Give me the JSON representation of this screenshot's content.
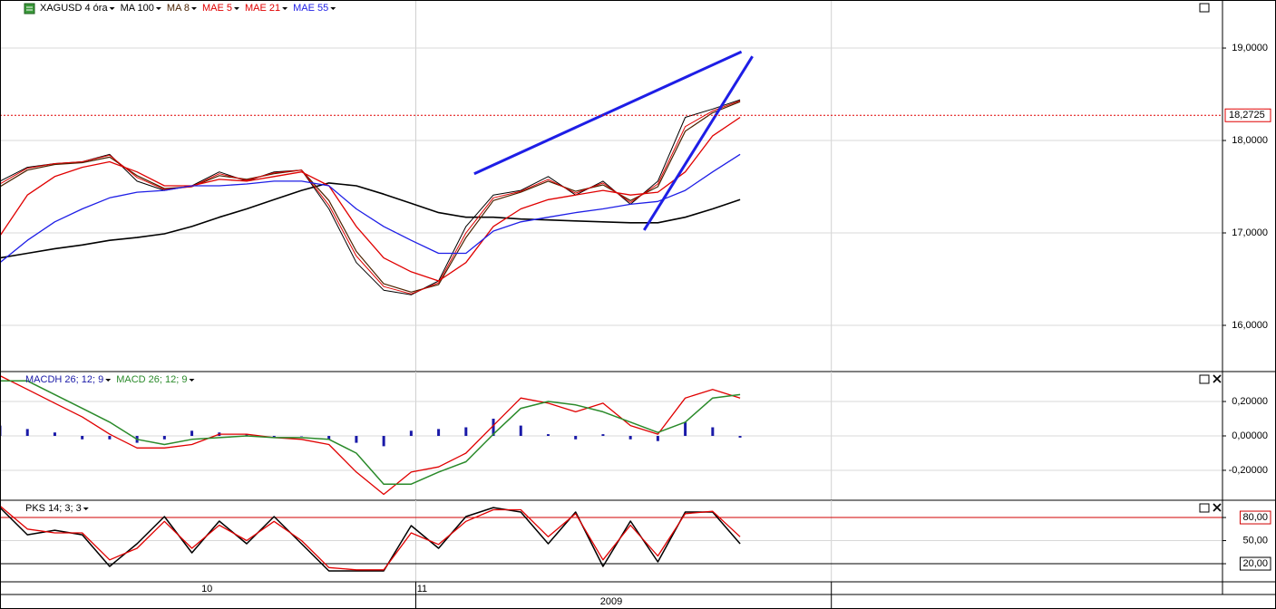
{
  "chart_data": [
    {
      "type": "line",
      "ylim": [
        15.5,
        19.52
      ],
      "yticks": [
        {
          "value": 16,
          "label": "16,0000"
        },
        {
          "value": 17,
          "label": "17,0000"
        },
        {
          "value": 18,
          "label": "18,0000"
        },
        {
          "value": 19,
          "label": "19,0000"
        }
      ],
      "series": [
        {
          "name": "XAGUSD 4 óra",
          "color": "#000000",
          "width": 1,
          "values": [
            17.56,
            17.71,
            17.75,
            17.77,
            17.85,
            17.56,
            17.46,
            17.51,
            17.66,
            17.56,
            17.66,
            17.68,
            17.26,
            16.68,
            16.38,
            16.33,
            16.48,
            17.07,
            17.41,
            17.46,
            17.61,
            17.41,
            17.56,
            17.31,
            17.56,
            18.25,
            18.34,
            18.44
          ]
        },
        {
          "name": "MA 100",
          "color": "#000000",
          "width": 1.6,
          "values": [
            16.73,
            16.78,
            16.83,
            16.87,
            16.92,
            16.95,
            16.99,
            17.07,
            17.17,
            17.26,
            17.36,
            17.46,
            17.54,
            17.51,
            17.42,
            17.32,
            17.22,
            17.17,
            17.17,
            17.15,
            17.14,
            17.13,
            17.12,
            17.11,
            17.11,
            17.17,
            17.26,
            17.36
          ]
        },
        {
          "name": "MA 8",
          "color": "#4a2200",
          "width": 1.2,
          "values": [
            17.5,
            17.68,
            17.74,
            17.76,
            17.82,
            17.62,
            17.48,
            17.5,
            17.62,
            17.58,
            17.64,
            17.68,
            17.35,
            16.8,
            16.45,
            16.36,
            16.44,
            16.95,
            17.35,
            17.44,
            17.56,
            17.45,
            17.52,
            17.35,
            17.5,
            18.1,
            18.3,
            18.42
          ]
        },
        {
          "name": "MAE 5",
          "color": "#e00000",
          "width": 1,
          "values": [
            17.53,
            17.7,
            17.75,
            17.77,
            17.84,
            17.6,
            17.47,
            17.5,
            17.64,
            17.57,
            17.65,
            17.68,
            17.3,
            16.75,
            16.42,
            16.34,
            16.46,
            17.0,
            17.38,
            17.45,
            17.58,
            17.43,
            17.54,
            17.33,
            17.53,
            18.15,
            18.32,
            18.43
          ]
        },
        {
          "name": "MAE 21",
          "color": "#e00000",
          "width": 1.3,
          "values": [
            16.97,
            17.41,
            17.61,
            17.71,
            17.77,
            17.66,
            17.51,
            17.51,
            17.58,
            17.56,
            17.61,
            17.66,
            17.51,
            17.07,
            16.73,
            16.58,
            16.48,
            16.68,
            17.07,
            17.26,
            17.36,
            17.41,
            17.46,
            17.41,
            17.44,
            17.66,
            18.05,
            18.25
          ]
        },
        {
          "name": "MAE 55",
          "color": "#1e1ee6",
          "width": 1.3,
          "values": [
            16.68,
            16.92,
            17.12,
            17.26,
            17.38,
            17.44,
            17.46,
            17.51,
            17.51,
            17.53,
            17.56,
            17.56,
            17.51,
            17.26,
            17.07,
            16.92,
            16.78,
            16.78,
            17.02,
            17.12,
            17.17,
            17.22,
            17.26,
            17.31,
            17.34,
            17.46,
            17.66,
            17.85
          ]
        }
      ],
      "trendlines": [
        {
          "x": [
            17.3,
            27.05
          ],
          "values": [
            17.64,
            18.96
          ]
        },
        {
          "x": [
            23.5,
            27.45
          ],
          "values": [
            17.03,
            18.91
          ]
        }
      ],
      "trendline_color": "#1e1ee6",
      "last": {
        "value": 18.2725,
        "label": "18,2725",
        "color": "#e00000"
      }
    },
    {
      "type": "line",
      "ylim": [
        -0.374,
        0.374
      ],
      "yticks": [
        {
          "value": -0.2,
          "label": "-0,20000"
        },
        {
          "value": 0,
          "label": "0,00000"
        },
        {
          "value": 0.2,
          "label": "0,20000"
        }
      ],
      "series": [
        {
          "name": "MACDH 26; 12; 9",
          "type": "bar",
          "color": "#1a1aa8",
          "values": [
            0.06,
            0.04,
            0.02,
            -0.02,
            -0.02,
            -0.04,
            -0.02,
            0.03,
            0.02,
            0.01,
            -0.01,
            0,
            -0.02,
            -0.04,
            -0.06,
            0.03,
            0.04,
            0.05,
            0.1,
            0.06,
            0.01,
            -0.02,
            0.01,
            -0.02,
            -0.03,
            0.08,
            0.05,
            -0.01
          ]
        },
        {
          "color": "#e00000",
          "width": 1.3,
          "values": [
            0.35,
            0.27,
            0.19,
            0.11,
            0.01,
            -0.07,
            -0.07,
            -0.05,
            0.01,
            0.01,
            -0.01,
            -0.02,
            -0.05,
            -0.21,
            -0.34,
            -0.21,
            -0.18,
            -0.1,
            0.06,
            0.22,
            0.19,
            0.14,
            0.19,
            0.06,
            0.01,
            0.22,
            0.27,
            0.22
          ]
        },
        {
          "name": "MACD 26; 12; 9",
          "color": "#2a8a2a",
          "width": 1.5,
          "values": [
            0.32,
            0.32,
            0.24,
            0.16,
            0.08,
            -0.02,
            -0.05,
            -0.02,
            -0.01,
            0,
            -0.01,
            -0.01,
            -0.02,
            -0.1,
            -0.28,
            -0.28,
            -0.21,
            -0.15,
            0.01,
            0.16,
            0.2,
            0.18,
            0.14,
            0.08,
            0.02,
            0.08,
            0.22,
            0.24
          ]
        }
      ]
    },
    {
      "type": "line",
      "ylim": [
        -3.5,
        102.4
      ],
      "yticks": [
        {
          "value": 20,
          "label": "20,00",
          "line_color": "#000000",
          "boxed": true
        },
        {
          "value": 50,
          "label": "50,00"
        },
        {
          "value": 80,
          "label": "80,00",
          "line_color": "#d00000",
          "boxed": true
        }
      ],
      "series": [
        {
          "name": "PKS 14; 3; 3",
          "color": "#000000",
          "width": 1.5,
          "values": [
            92.9,
            57.6,
            63.5,
            57.6,
            16.5,
            45.9,
            81.2,
            34.1,
            75.3,
            45.9,
            81.2,
            45.9,
            10.6,
            10.6,
            10.6,
            69.4,
            40,
            81.2,
            92.9,
            87.1,
            45.9,
            87.1,
            16.5,
            75.3,
            22.4,
            87.1,
            87.1,
            45.9
          ]
        },
        {
          "color": "#e00000",
          "width": 1.3,
          "values": [
            95,
            65,
            60,
            60,
            25,
            40,
            75,
            40,
            70,
            50,
            75,
            50,
            15,
            12,
            12,
            60,
            45,
            75,
            90,
            90,
            55,
            85,
            25,
            70,
            30,
            85,
            88,
            55
          ]
        }
      ]
    }
  ],
  "x_axis": {
    "xlim": [
      0,
      44.6
    ],
    "grid_x": [
      15.17,
      30.33
    ],
    "ticks": [
      {
        "value": 7.55,
        "label": "10"
      },
      {
        "value": 15.4,
        "label": "11"
      }
    ],
    "year": {
      "value": 22.3,
      "label": "2009"
    }
  }
}
